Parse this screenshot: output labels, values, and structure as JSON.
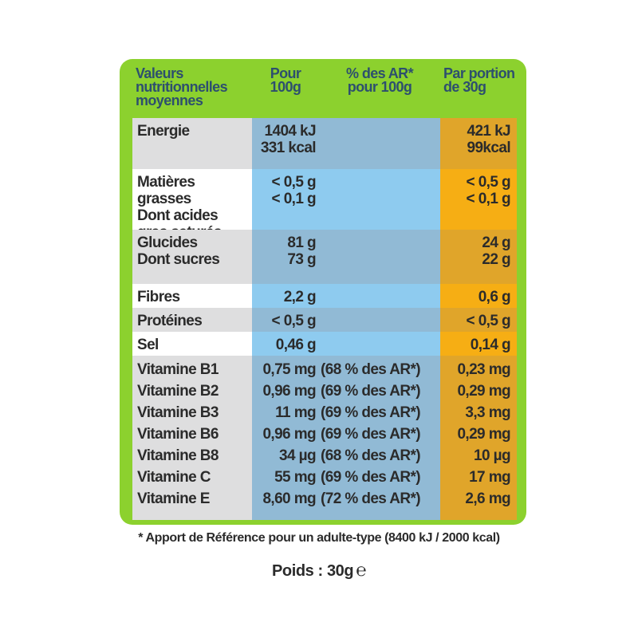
{
  "header": {
    "col1": [
      "Valeurs",
      "nutritionnelles",
      "moyennes"
    ],
    "col2": [
      "Pour",
      "100g"
    ],
    "col3": [
      "% des AR*",
      "pour 100g"
    ],
    "col4": [
      "Par portion",
      "de 30g"
    ]
  },
  "rows": [
    {
      "label": [
        "Energie"
      ],
      "per100": [
        "1404 kJ",
        "331 kcal"
      ],
      "ar": [],
      "portion": [
        "421 kJ",
        "99kcal"
      ]
    },
    {
      "label": [
        "Matières grasses",
        "Dont acides",
        "gras saturés"
      ],
      "per100": [
        "< 0,5 g",
        "< 0,1 g"
      ],
      "ar": [],
      "portion": [
        "< 0,5 g",
        "< 0,1 g"
      ]
    },
    {
      "label": [
        "Glucides",
        " Dont sucres"
      ],
      "per100": [
        "81 g",
        "73 g"
      ],
      "ar": [],
      "portion": [
        "24 g",
        "22 g"
      ]
    },
    {
      "label": [
        "Fibres"
      ],
      "per100": [
        "2,2 g"
      ],
      "ar": [],
      "portion": [
        "0,6 g"
      ]
    },
    {
      "label": [
        "Protéines"
      ],
      "per100": [
        "< 0,5 g"
      ],
      "ar": [],
      "portion": [
        "< 0,5 g"
      ]
    },
    {
      "label": [
        "Sel"
      ],
      "per100": [
        "0,46 g"
      ],
      "ar": [],
      "portion": [
        "0,14 g"
      ]
    }
  ],
  "vitamins": [
    {
      "name": "Vitamine B1",
      "per100": "0,75 mg",
      "ar": "(68 % des AR*)",
      "portion": "0,23 mg"
    },
    {
      "name": "Vitamine B2",
      "per100": "0,96 mg",
      "ar": "(69 % des AR*)",
      "portion": "0,29 mg"
    },
    {
      "name": "Vitamine B3",
      "per100": "11 mg",
      "ar": "(69 % des AR*)",
      "portion": "3,3 mg"
    },
    {
      "name": "Vitamine B6",
      "per100": "0,96 mg",
      "ar": "(69 % des AR*)",
      "portion": "0,29 mg"
    },
    {
      "name": "Vitamine B8",
      "per100": "34 µg",
      "ar": "(68 % des AR*)",
      "portion": "10 µg"
    },
    {
      "name": "Vitamine C",
      "per100": "55 mg",
      "ar": "(69 % des AR*)",
      "portion": "17 mg"
    },
    {
      "name": "Vitamine E",
      "per100": "8,60 mg",
      "ar": "(72 % des AR*)",
      "portion": "2,6 mg"
    }
  ],
  "footnote": "* Apport de Référence pour un adulte-type (8400 kJ / 2000 kcal)",
  "weight": {
    "label": "Poids : 30g",
    "estimated_mark": "℮"
  },
  "colors": {
    "frame": "#8cd12e",
    "header_text": "#2d4f6e",
    "grey_row": "#dededf",
    "blue_col": "#8ecbef",
    "blue_col_dark": "#91bad5",
    "orange_col": "#f6ae14",
    "orange_col_dark": "#e0a52a"
  }
}
